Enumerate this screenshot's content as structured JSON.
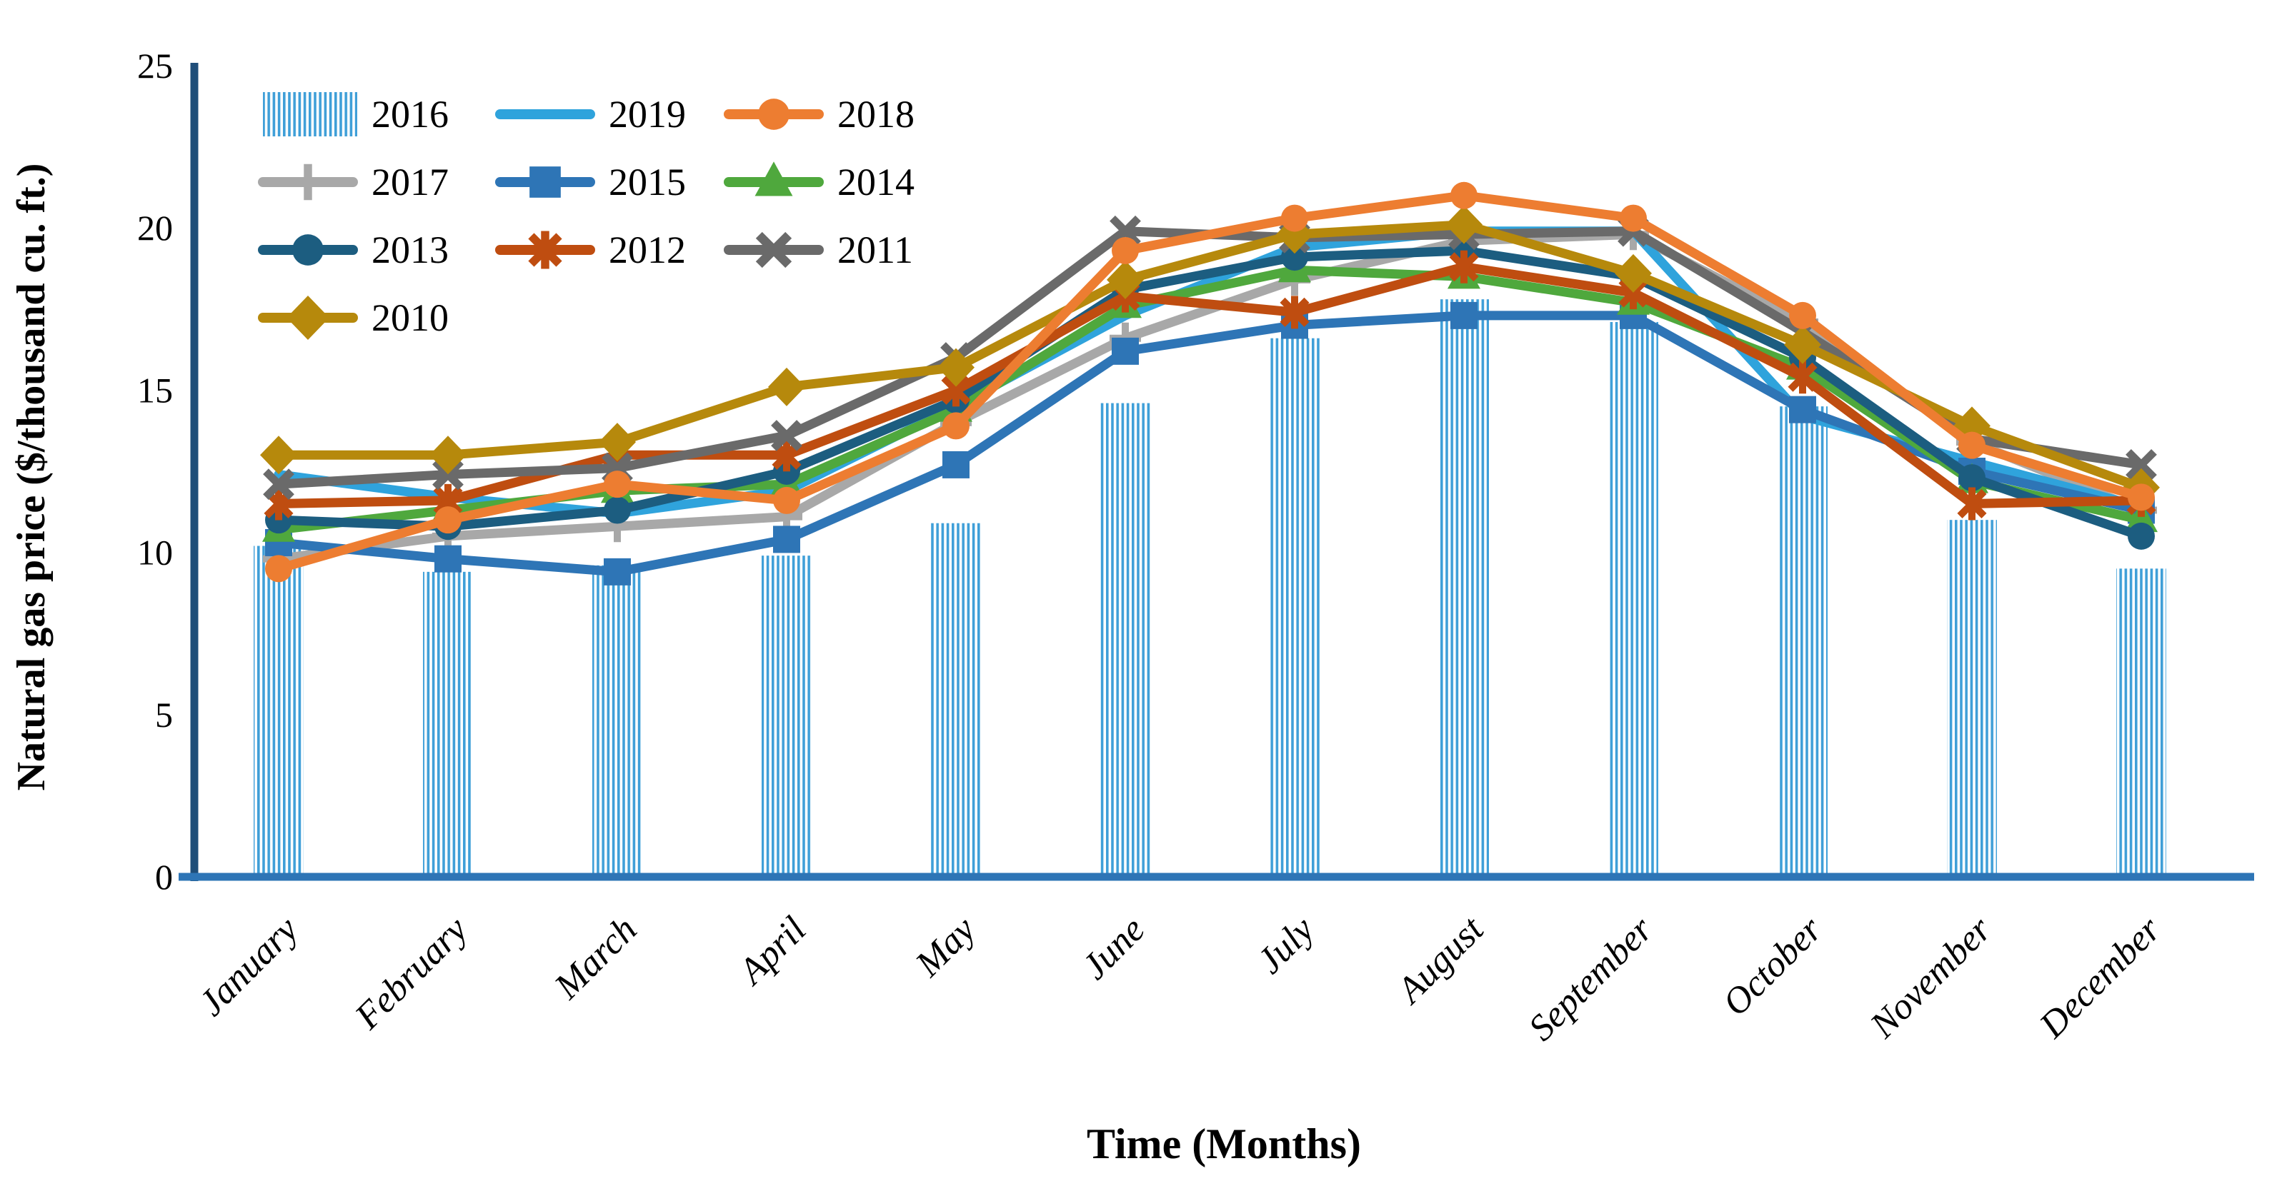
{
  "chart_data": {
    "type": "line+bar",
    "title": "",
    "xlabel": "Time (Months)",
    "ylabel": "Natural gas price ($/thousand cu. ft.)",
    "categories": [
      "January",
      "February",
      "March",
      "April",
      "May",
      "June",
      "July",
      "August",
      "September",
      "October",
      "November",
      "December"
    ],
    "ylim": [
      0,
      25
    ],
    "yticks": [
      0,
      5,
      10,
      15,
      20,
      25
    ],
    "grid": false,
    "legend_position": "top-left-inside",
    "axis_colors": {
      "y_axis": "#1F4E79",
      "x_axis": "#2E75B6"
    },
    "series": [
      {
        "name": "2016",
        "type": "bar",
        "marker": "none",
        "style": "vertical-stripe-hatch",
        "color": "#3F9FD8",
        "values": [
          10.2,
          9.4,
          9.6,
          9.9,
          10.9,
          14.6,
          16.6,
          17.8,
          17.1,
          14.5,
          11.0,
          9.5
        ]
      },
      {
        "name": "2019",
        "type": "line",
        "marker": "none",
        "color": "#2FA3DC",
        "values": [
          12.4,
          11.7,
          11.2,
          11.9,
          14.5,
          17.3,
          19.4,
          19.9,
          19.9,
          14.2,
          12.8,
          11.4
        ]
      },
      {
        "name": "2018",
        "type": "line",
        "marker": "circle",
        "color": "#ED7D31",
        "values": [
          9.5,
          11.0,
          12.1,
          11.6,
          13.9,
          19.3,
          20.3,
          21.0,
          20.3,
          17.3,
          13.3,
          11.7
        ]
      },
      {
        "name": "2017",
        "type": "line",
        "marker": "plus",
        "color": "#A8A8A8",
        "values": [
          9.8,
          10.5,
          10.8,
          11.1,
          14.0,
          16.6,
          18.4,
          19.6,
          19.8,
          17.1,
          13.4,
          11.3
        ]
      },
      {
        "name": "2015",
        "type": "line",
        "marker": "square",
        "color": "#2E75B6",
        "values": [
          10.3,
          9.8,
          9.4,
          10.4,
          12.7,
          16.2,
          17.0,
          17.3,
          17.3,
          14.4,
          12.5,
          11.3
        ]
      },
      {
        "name": "2014",
        "type": "line",
        "marker": "triangle",
        "color": "#4FA83D",
        "values": [
          10.7,
          11.3,
          11.9,
          12.1,
          14.4,
          17.6,
          18.7,
          18.5,
          17.7,
          15.7,
          12.2,
          11.0
        ]
      },
      {
        "name": "2013",
        "type": "line",
        "marker": "circle",
        "color": "#1C5D80",
        "values": [
          11.0,
          10.8,
          11.3,
          12.5,
          14.7,
          18.1,
          19.1,
          19.3,
          18.5,
          16.0,
          12.3,
          10.5
        ]
      },
      {
        "name": "2012",
        "type": "line",
        "marker": "asterisk",
        "color": "#BF4D10",
        "values": [
          11.5,
          11.6,
          13.0,
          13.0,
          15.0,
          17.9,
          17.4,
          18.8,
          18.0,
          15.4,
          11.5,
          11.6
        ]
      },
      {
        "name": "2011",
        "type": "line",
        "marker": "x",
        "color": "#6A6A6A",
        "values": [
          12.1,
          12.4,
          12.6,
          13.6,
          16.0,
          19.9,
          19.7,
          19.8,
          19.9,
          16.8,
          13.5,
          12.7
        ]
      },
      {
        "name": "2010",
        "type": "line",
        "marker": "diamond",
        "color": "#B6890C",
        "values": [
          13.0,
          13.0,
          13.4,
          15.1,
          15.7,
          18.4,
          19.8,
          20.1,
          18.6,
          16.4,
          13.9,
          12.0
        ]
      }
    ],
    "legend_order": [
      "2016",
      "2019",
      "2018",
      "2017",
      "2015",
      "2014",
      "2013",
      "2012",
      "2011",
      "2010"
    ],
    "draw_order": [
      "2016",
      "2017",
      "2019",
      "2015",
      "2014",
      "2013",
      "2012",
      "2011",
      "2010",
      "2018"
    ]
  }
}
